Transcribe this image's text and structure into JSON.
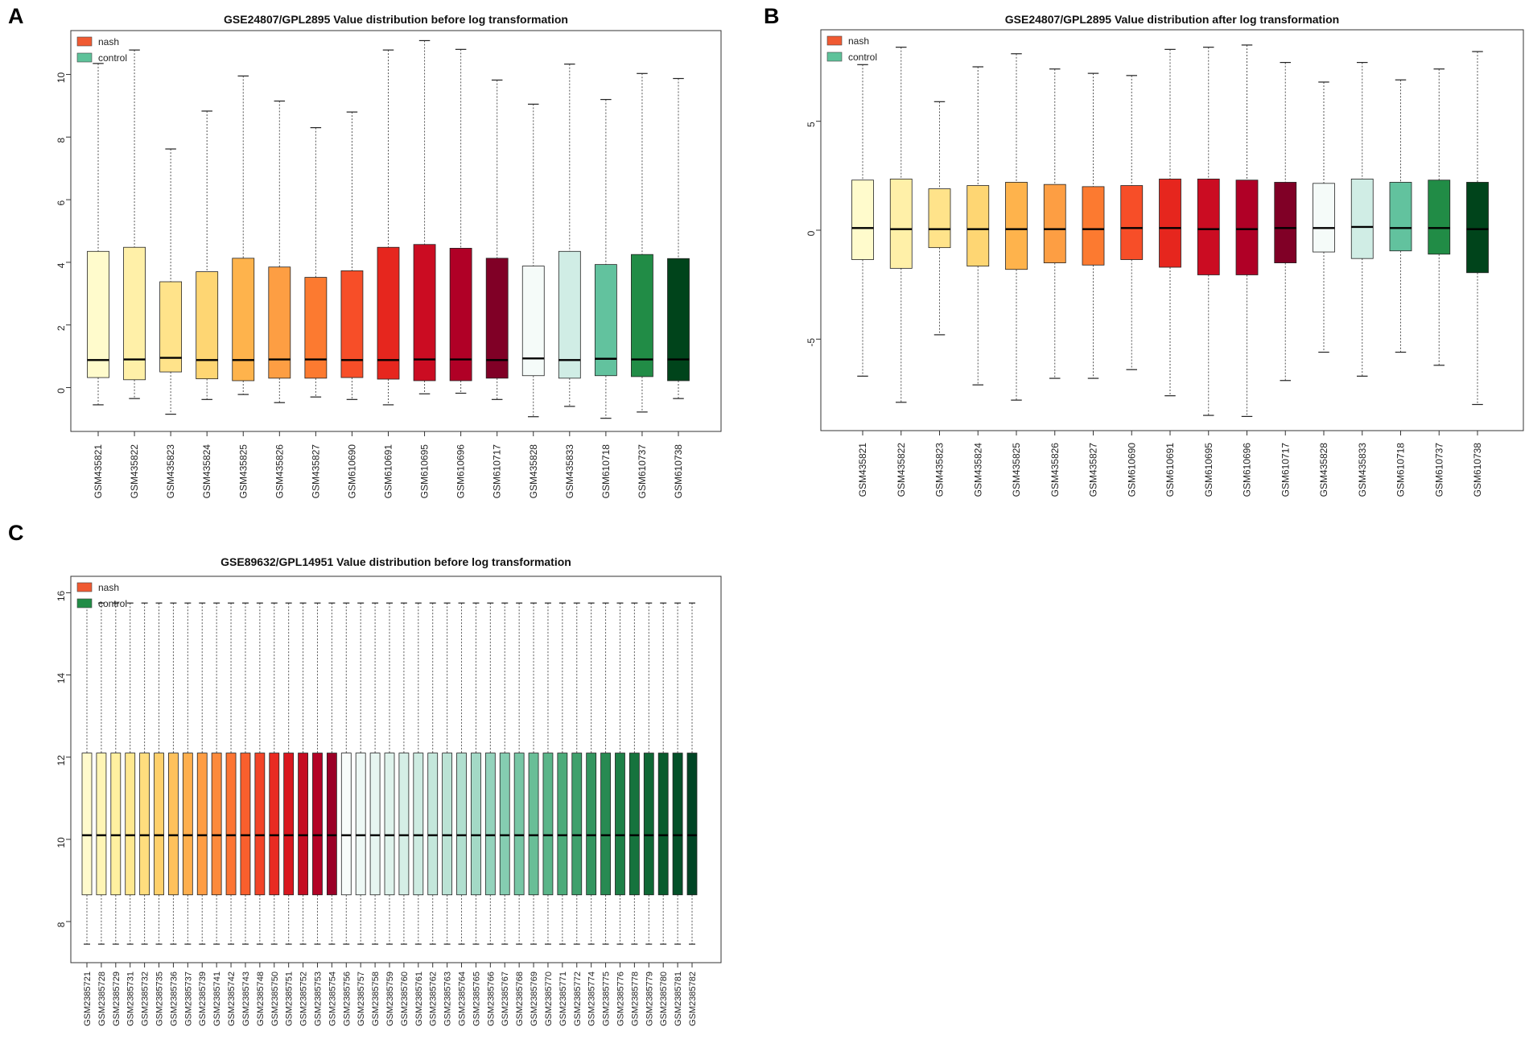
{
  "chart_data": [
    {
      "panel": "A",
      "type": "boxplot",
      "title": "GSE24807/GPL2895  Value distribution before log transformation",
      "ylim": [
        -1.4,
        11.4
      ],
      "yticks": [
        0,
        2,
        4,
        6,
        8,
        10
      ],
      "legend": {
        "position": "top-left",
        "entries": [
          {
            "label": "nash",
            "color": "#f05a32"
          },
          {
            "label": "control",
            "color": "#5ec29a"
          }
        ]
      },
      "categories": [
        "GSM435821",
        "GSM435822",
        "GSM435823",
        "GSM435824",
        "GSM435825",
        "GSM435826",
        "GSM435827",
        "GSM610690",
        "GSM610691",
        "GSM610695",
        "GSM610696",
        "GSM610717",
        "GSM435828",
        "GSM435833",
        "GSM610718",
        "GSM610737",
        "GSM610738"
      ],
      "series": [
        {
          "name": "whisker_low",
          "values": [
            -0.55,
            -0.35,
            -0.85,
            -0.38,
            -0.22,
            -0.48,
            -0.3,
            -0.38,
            -0.55,
            -0.2,
            -0.18,
            -0.38,
            -0.93,
            -0.6,
            -0.98,
            -0.78,
            -0.35
          ]
        },
        {
          "name": "q1",
          "values": [
            0.32,
            0.25,
            0.5,
            0.28,
            0.22,
            0.3,
            0.3,
            0.32,
            0.27,
            0.22,
            0.22,
            0.3,
            0.38,
            0.3,
            0.38,
            0.35,
            0.22
          ]
        },
        {
          "name": "median",
          "values": [
            0.88,
            0.9,
            0.95,
            0.88,
            0.88,
            0.9,
            0.9,
            0.88,
            0.88,
            0.9,
            0.9,
            0.88,
            0.93,
            0.88,
            0.92,
            0.9,
            0.9
          ]
        },
        {
          "name": "q3",
          "values": [
            4.35,
            4.48,
            3.38,
            3.7,
            4.13,
            3.85,
            3.52,
            3.73,
            4.48,
            4.57,
            4.45,
            4.13,
            3.88,
            4.35,
            3.93,
            4.25,
            4.12
          ]
        },
        {
          "name": "whisker_high",
          "values": [
            10.35,
            10.78,
            7.62,
            8.83,
            9.95,
            9.15,
            8.3,
            8.8,
            10.78,
            11.08,
            10.8,
            9.82,
            9.05,
            10.33,
            9.2,
            10.03,
            9.87
          ]
        }
      ],
      "colors": [
        "#fffbcc",
        "#fff0a8",
        "#ffe38a",
        "#fed673",
        "#feb34c",
        "#fd9e43",
        "#fc7a30",
        "#f74e28",
        "#e6261e",
        "#cb0c22",
        "#b00026",
        "#800026",
        "#f5fbf9",
        "#d0ede5",
        "#62c29e",
        "#218c46",
        "#00441b"
      ]
    },
    {
      "panel": "B",
      "type": "boxplot",
      "title": "GSE24807/GPL2895  Value distribution after log transformation",
      "ylim": [
        -9.2,
        9.2
      ],
      "yticks": [
        -5,
        0,
        5
      ],
      "legend": {
        "position": "top-left",
        "entries": [
          {
            "label": "nash",
            "color": "#f05a32"
          },
          {
            "label": "control",
            "color": "#5ec29a"
          }
        ]
      },
      "categories": [
        "GSM435821",
        "GSM435822",
        "GSM435823",
        "GSM435824",
        "GSM435825",
        "GSM435826",
        "GSM435827",
        "GSM610690",
        "GSM610691",
        "GSM610695",
        "GSM610696",
        "GSM610717",
        "GSM435828",
        "GSM435833",
        "GSM610718",
        "GSM610737",
        "GSM610738"
      ],
      "series": [
        {
          "name": "whisker_low",
          "values": [
            -6.7,
            -7.9,
            -4.8,
            -7.1,
            -7.8,
            -6.8,
            -6.8,
            -6.4,
            -7.6,
            -8.5,
            -8.55,
            -6.9,
            -5.6,
            -6.7,
            -5.6,
            -6.2,
            -8.0
          ]
        },
        {
          "name": "q1",
          "values": [
            -1.35,
            -1.75,
            -0.8,
            -1.65,
            -1.8,
            -1.5,
            -1.6,
            -1.35,
            -1.7,
            -2.05,
            -2.05,
            -1.5,
            -1.0,
            -1.3,
            -0.95,
            -1.1,
            -1.95
          ]
        },
        {
          "name": "median",
          "values": [
            0.1,
            0.05,
            0.05,
            0.05,
            0.05,
            0.05,
            0.05,
            0.1,
            0.1,
            0.05,
            0.05,
            0.1,
            0.1,
            0.15,
            0.1,
            0.1,
            0.05
          ]
        },
        {
          "name": "q3",
          "values": [
            2.3,
            2.35,
            1.9,
            2.05,
            2.2,
            2.1,
            2.0,
            2.05,
            2.35,
            2.35,
            2.3,
            2.2,
            2.15,
            2.35,
            2.2,
            2.3,
            2.2
          ]
        },
        {
          "name": "whisker_high",
          "values": [
            7.6,
            8.4,
            5.9,
            7.5,
            8.1,
            7.4,
            7.2,
            7.1,
            8.3,
            8.4,
            8.5,
            7.7,
            6.8,
            7.7,
            6.9,
            7.4,
            8.2
          ]
        }
      ],
      "colors": [
        "#fffbcc",
        "#fff0a8",
        "#ffe38a",
        "#fed673",
        "#feb34c",
        "#fd9e43",
        "#fc7a30",
        "#f74e28",
        "#e6261e",
        "#cb0c22",
        "#b00026",
        "#800026",
        "#f5fbf9",
        "#d0ede5",
        "#62c29e",
        "#218c46",
        "#00441b"
      ]
    },
    {
      "panel": "C",
      "type": "boxplot",
      "title": "GSE89632/GPL14951 Value distribution before log transformation",
      "ylim": [
        7.0,
        16.4
      ],
      "yticks": [
        8,
        10,
        12,
        14,
        16
      ],
      "legend": {
        "position": "top-left",
        "entries": [
          {
            "label": "nash",
            "color": "#f05a32"
          },
          {
            "label": "control",
            "color": "#218c46"
          }
        ]
      },
      "categories": [
        "GSM2385721",
        "GSM2385728",
        "GSM2385729",
        "GSM2385731",
        "GSM2385732",
        "GSM2385735",
        "GSM2385736",
        "GSM2385737",
        "GSM2385739",
        "GSM2385741",
        "GSM2385742",
        "GSM2385743",
        "GSM2385748",
        "GSM2385750",
        "GSM2385751",
        "GSM2385752",
        "GSM2385753",
        "GSM2385754",
        "GSM2385756",
        "GSM2385757",
        "GSM2385758",
        "GSM2385759",
        "GSM2385760",
        "GSM2385761",
        "GSM2385762",
        "GSM2385763",
        "GSM2385764",
        "GSM2385765",
        "GSM2385766",
        "GSM2385767",
        "GSM2385768",
        "GSM2385769",
        "GSM2385770",
        "GSM2385771",
        "GSM2385772",
        "GSM2385774",
        "GSM2385775",
        "GSM2385776",
        "GSM2385778",
        "GSM2385779",
        "GSM2385780",
        "GSM2385781",
        "GSM2385782"
      ],
      "all_boxes": {
        "whisker_low": 7.45,
        "q1": 8.65,
        "median": 10.1,
        "q3": 12.1,
        "whisker_high": 15.75
      }
    }
  ]
}
